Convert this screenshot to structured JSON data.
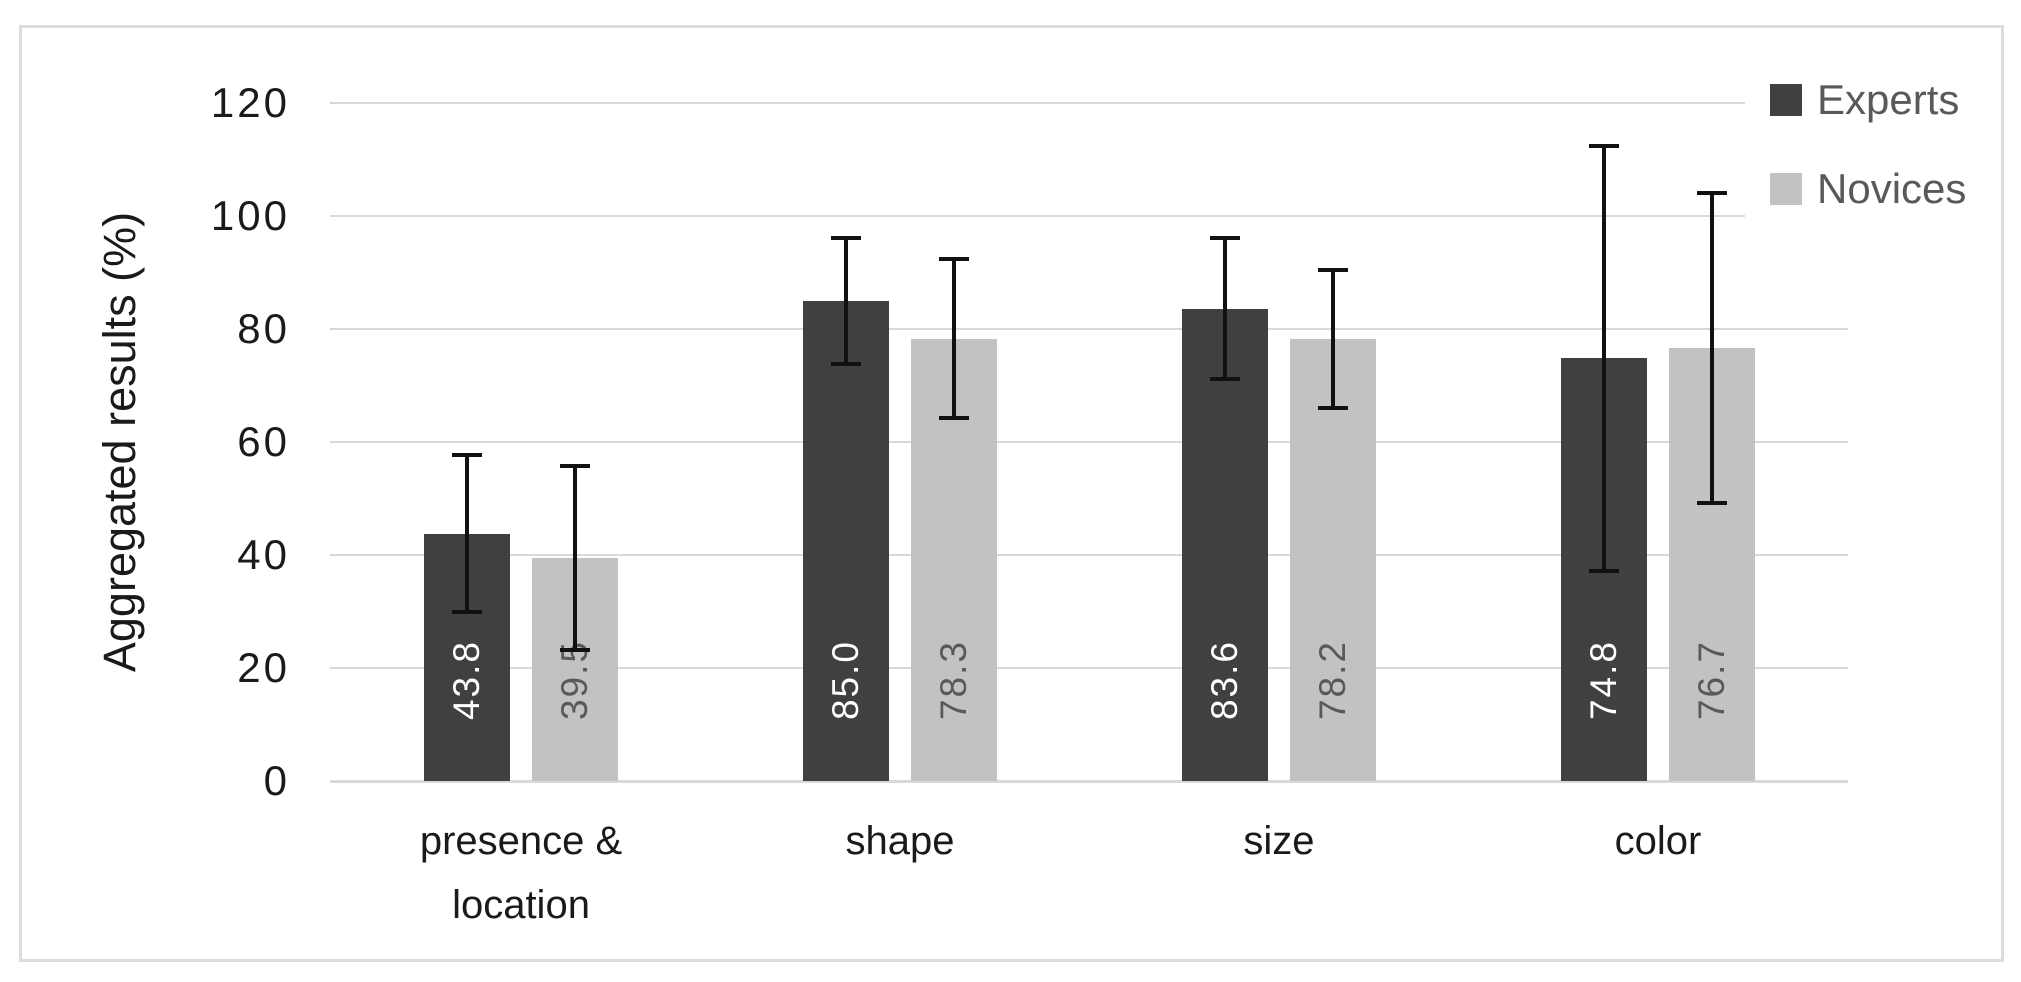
{
  "chart_data": {
    "type": "bar",
    "title": "",
    "ylabel": "Aggregated results (%)",
    "xlabel": "",
    "ylim": [
      0,
      120
    ],
    "yticks": [
      0,
      20,
      40,
      60,
      80,
      100,
      120
    ],
    "grid": true,
    "legend": {
      "position": "top-right",
      "entries": [
        "Experts",
        "Novices"
      ]
    },
    "categories": [
      "presence & location",
      "shape",
      "size",
      "color"
    ],
    "series": [
      {
        "name": "Experts",
        "color": "#404040",
        "label_color": "#ffffff",
        "values": [
          43.8,
          85.0,
          83.6,
          74.8
        ],
        "value_labels": [
          "43.8",
          "85.0",
          "83.6",
          "74.8"
        ],
        "errors": [
          14.2,
          11.5,
          12.8,
          38.0
        ]
      },
      {
        "name": "Novices",
        "color": "#c2c2c2",
        "label_color": "#595959",
        "values": [
          39.5,
          78.3,
          78.2,
          76.7
        ],
        "value_labels": [
          "39.5",
          "78.3",
          "78.2",
          "76.7"
        ],
        "errors": [
          16.6,
          14.4,
          12.6,
          27.8
        ]
      }
    ],
    "colors": {
      "gridline": "#d9d9d9",
      "axis_text": "#1a1a1a",
      "legend_text": "#595959",
      "error_bar": "#111111",
      "frame_border": "#dcdcdc",
      "background": "#ffffff"
    }
  }
}
